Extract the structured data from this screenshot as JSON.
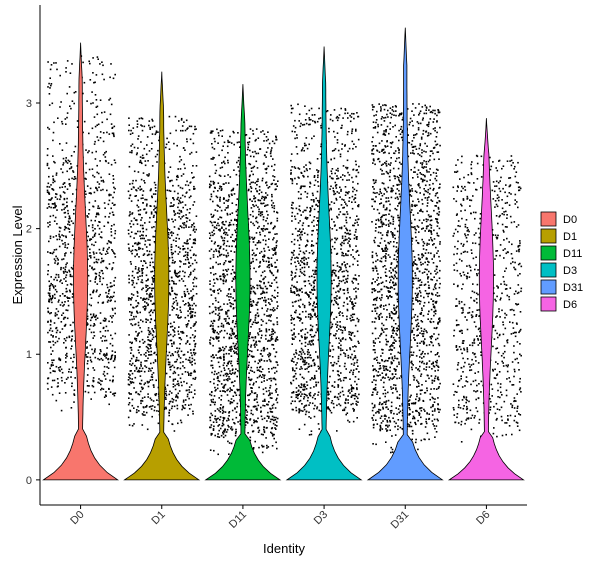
{
  "chart_data": {
    "type": "violin",
    "xlabel": "Identity",
    "ylabel": "Expression Level",
    "ylim": [
      -0.2,
      3.78
    ],
    "yticks": [
      0,
      1,
      2,
      3
    ],
    "categories": [
      "D0",
      "D1",
      "D11",
      "D3",
      "D31",
      "D6"
    ],
    "colors": [
      "#F8766D",
      "#B79F00",
      "#00BA38",
      "#00BFC4",
      "#619CFF",
      "#F564E3"
    ],
    "max_values": [
      3.48,
      3.25,
      3.15,
      3.45,
      3.6,
      2.88
    ],
    "point_density": [
      {
        "top": 3.0,
        "bulk_low": 0.7,
        "bulk_high": 2.5,
        "points": 1100
      },
      {
        "top": 2.5,
        "bulk_low": 0.5,
        "bulk_high": 2.3,
        "points": 1400
      },
      {
        "top": 2.4,
        "bulk_low": 0.3,
        "bulk_high": 2.3,
        "points": 1700
      },
      {
        "top": 2.6,
        "bulk_low": 0.5,
        "bulk_high": 2.4,
        "points": 1500
      },
      {
        "top": 2.6,
        "bulk_low": 0.35,
        "bulk_high": 2.6,
        "points": 1800
      },
      {
        "top": 2.2,
        "bulk_low": 0.4,
        "bulk_high": 2.3,
        "points": 750
      }
    ],
    "legend_position": "right",
    "grid": false
  }
}
